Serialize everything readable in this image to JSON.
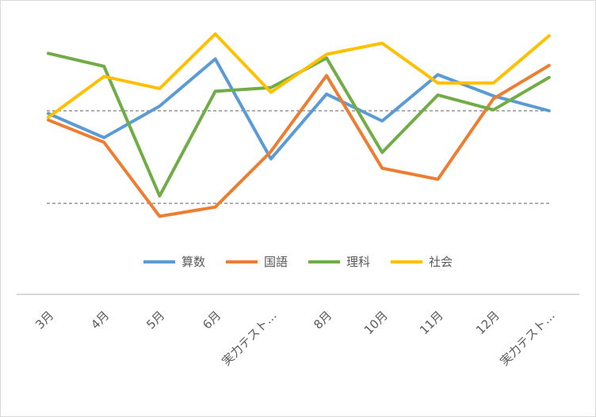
{
  "chart_data": {
    "type": "line",
    "categories": [
      "3月",
      "4月",
      "5月",
      "6月",
      "実力テスト…",
      "8月",
      "10月",
      "11月",
      "12月",
      "実力テスト…"
    ],
    "series": [
      {
        "name": "算数",
        "color": "#5b9bd5",
        "values": [
          49.7,
          47.1,
          50.5,
          55.6,
          44.8,
          51.8,
          48.9,
          53.9,
          51.6,
          50.0
        ]
      },
      {
        "name": "国語",
        "color": "#ed7d31",
        "values": [
          49.0,
          46.6,
          38.6,
          39.6,
          45.6,
          53.8,
          43.8,
          42.6,
          51.3,
          54.9
        ]
      },
      {
        "name": "理科",
        "color": "#70ad47",
        "values": [
          56.2,
          54.8,
          40.8,
          52.1,
          52.5,
          55.7,
          45.5,
          51.7,
          50.1,
          53.6
        ]
      },
      {
        "name": "社会",
        "color": "#ffc000",
        "values": [
          49.3,
          53.7,
          52.4,
          58.3,
          52.0,
          56.1,
          57.3,
          53.0,
          53.0,
          58.1
        ]
      }
    ],
    "reference_lines": [
      50,
      40
    ],
    "ylim": [
      37,
      60
    ],
    "legend": "bottom",
    "grid": false
  }
}
